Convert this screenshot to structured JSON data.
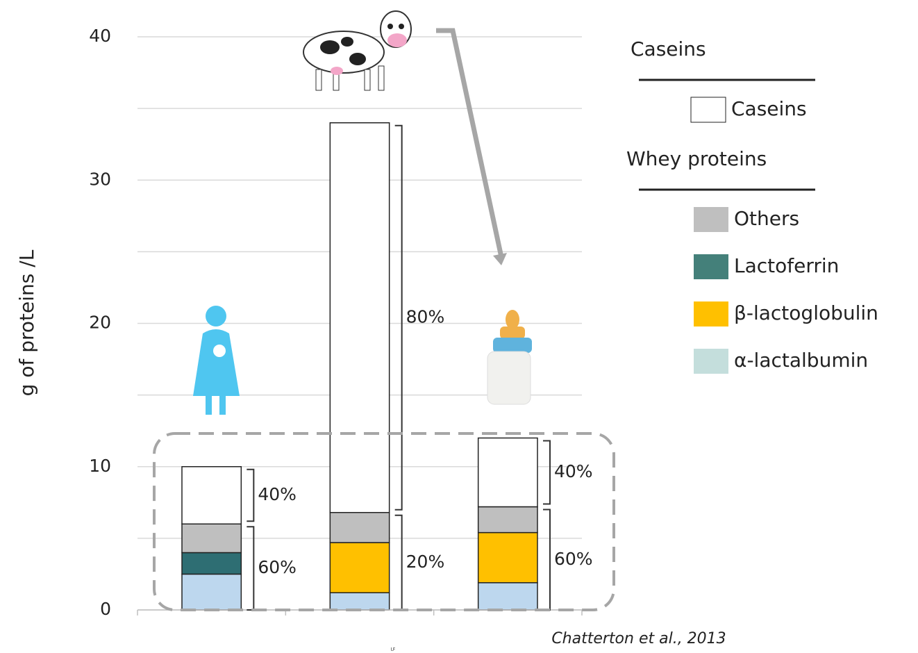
{
  "chart_data": {
    "type": "stacked-bar",
    "y_label": "g of proteins /L",
    "categories": [
      null,
      null,
      null
    ],
    "series": [
      {
        "name": "α-lactalbumin",
        "color": "#bdd7ee",
        "swatch_color": "#c4dedc",
        "values": [
          2.5,
          1.2,
          1.9
        ]
      },
      {
        "name": "Lactoferrin",
        "color": "#2e6e73",
        "swatch_color": "#44807a",
        "values": [
          1.5,
          0,
          0
        ]
      },
      {
        "name": "β-lactoglobulin",
        "color": "#ffc000",
        "swatch_color": "#ffc000",
        "values": [
          0,
          3.5,
          3.5
        ]
      },
      {
        "name": "Others",
        "color": "#bfbfbf",
        "swatch_color": "#bfbfbf",
        "values": [
          2,
          2.1,
          1.8
        ]
      },
      {
        "name": "Caseins",
        "color": "#ffffff",
        "swatch_color": "#ffffff",
        "values": [
          4,
          27.2,
          4.8
        ]
      }
    ],
    "legend_groups": [
      {
        "title": "Caseins",
        "members": [
          4
        ]
      },
      {
        "title": "Whey proteins",
        "members": [
          3,
          1,
          2,
          0
        ]
      }
    ],
    "annotations": [
      {
        "text": "40%",
        "bar": 0,
        "members": [
          4
        ]
      },
      {
        "text": "60%",
        "bar": 0,
        "members": [
          0,
          1,
          2,
          3
        ]
      },
      {
        "text": "80%",
        "bar": 1,
        "members": [
          4
        ]
      },
      {
        "text": "20%",
        "bar": 1,
        "members": [
          0,
          1,
          2,
          3
        ]
      },
      {
        "text": "40%",
        "bar": 2,
        "members": [
          4
        ]
      },
      {
        "text": "60%",
        "bar": 2,
        "members": [
          0,
          1,
          2,
          3
        ]
      }
    ],
    "ylim": [
      0,
      40
    ],
    "yticks": [
      0,
      10,
      20,
      30,
      40
    ],
    "minor_grid": [
      5,
      15,
      25,
      35
    ],
    "grid": true,
    "source": "Chatterton et al., 2013",
    "footnote_mark": "LF"
  }
}
